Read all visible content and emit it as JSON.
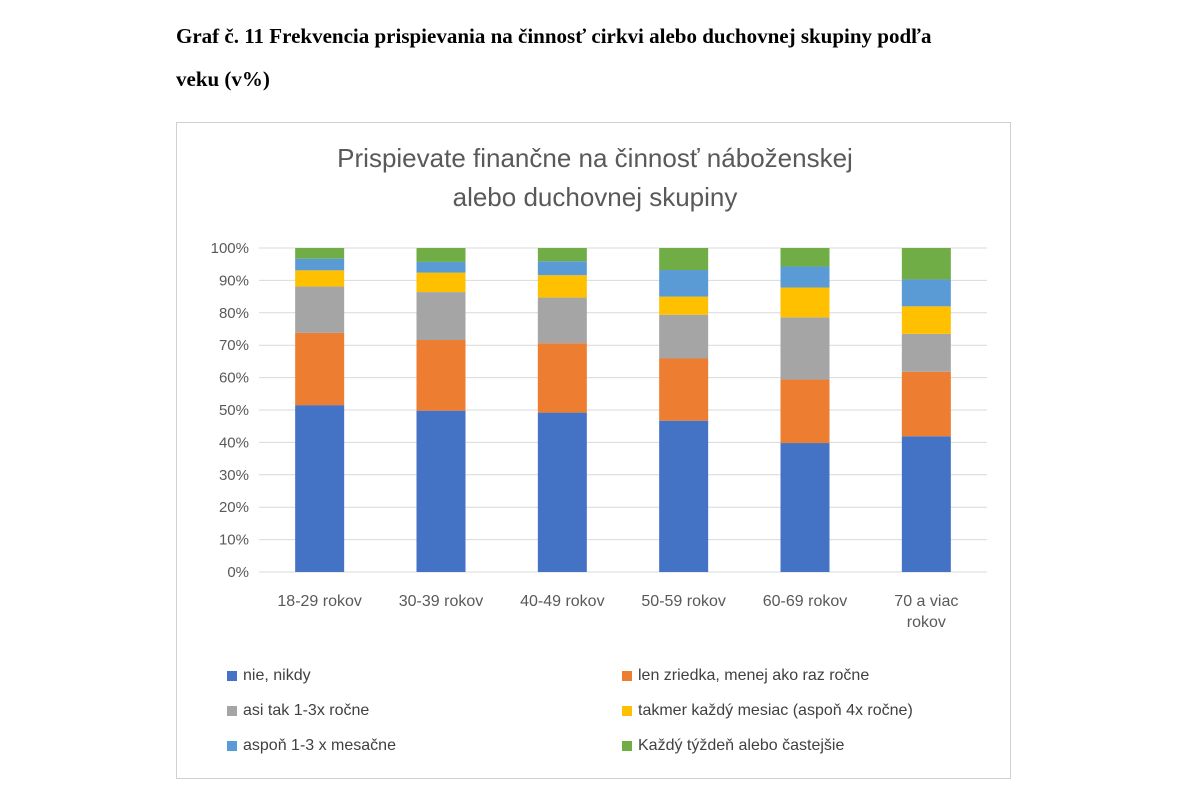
{
  "caption": {
    "line1": "Graf č. 11 Frekvencia prispievania na činnosť cirkvi alebo duchovnej skupiny podľa",
    "line2": "veku (v%)"
  },
  "chart_data": {
    "type": "bar",
    "stacked": true,
    "percent_stacked": true,
    "title_lines": [
      "Prispievate finančne na činnosť náboženskej",
      "alebo duchovnej  skupiny"
    ],
    "categories": [
      [
        "18-29 rokov"
      ],
      [
        "30-39 rokov"
      ],
      [
        "40-49 rokov"
      ],
      [
        "50-59 rokov"
      ],
      [
        "60-69 rokov"
      ],
      [
        "70 a viac",
        "rokov"
      ]
    ],
    "ylim": [
      0,
      100
    ],
    "yticks": [
      "0%",
      "10%",
      "20%",
      "30%",
      "40%",
      "50%",
      "60%",
      "70%",
      "80%",
      "90%",
      "100%"
    ],
    "grid": true,
    "legend_position": "bottom",
    "series": [
      {
        "name": "nie, nikdy",
        "color": "#4472C4",
        "values": [
          51.5,
          49.8,
          49.2,
          46.7,
          39.8,
          41.9
        ]
      },
      {
        "name": "len zriedka, menej ako raz ročne",
        "color": "#ED7D31",
        "values": [
          22.3,
          21.8,
          21.4,
          19.2,
          19.6,
          19.9
        ]
      },
      {
        "name": "asi tak 1-3x ročne",
        "color": "#A5A5A5",
        "values": [
          14.3,
          14.8,
          14.1,
          13.5,
          19.2,
          11.7
        ]
      },
      {
        "name": "takmer každý mesiac (aspoň 4x ročne)",
        "color": "#FFC000",
        "values": [
          5.0,
          6.0,
          6.9,
          5.6,
          9.2,
          8.5
        ]
      },
      {
        "name": "aspoň 1-3 x mesačne",
        "color": "#5B9BD5",
        "values": [
          3.6,
          3.3,
          4.3,
          8.2,
          6.5,
          8.3
        ]
      },
      {
        "name": "Každý týždeň alebo častejšie",
        "color": "#70AD47",
        "values": [
          3.3,
          4.3,
          4.1,
          6.8,
          5.7,
          9.7
        ]
      }
    ]
  }
}
